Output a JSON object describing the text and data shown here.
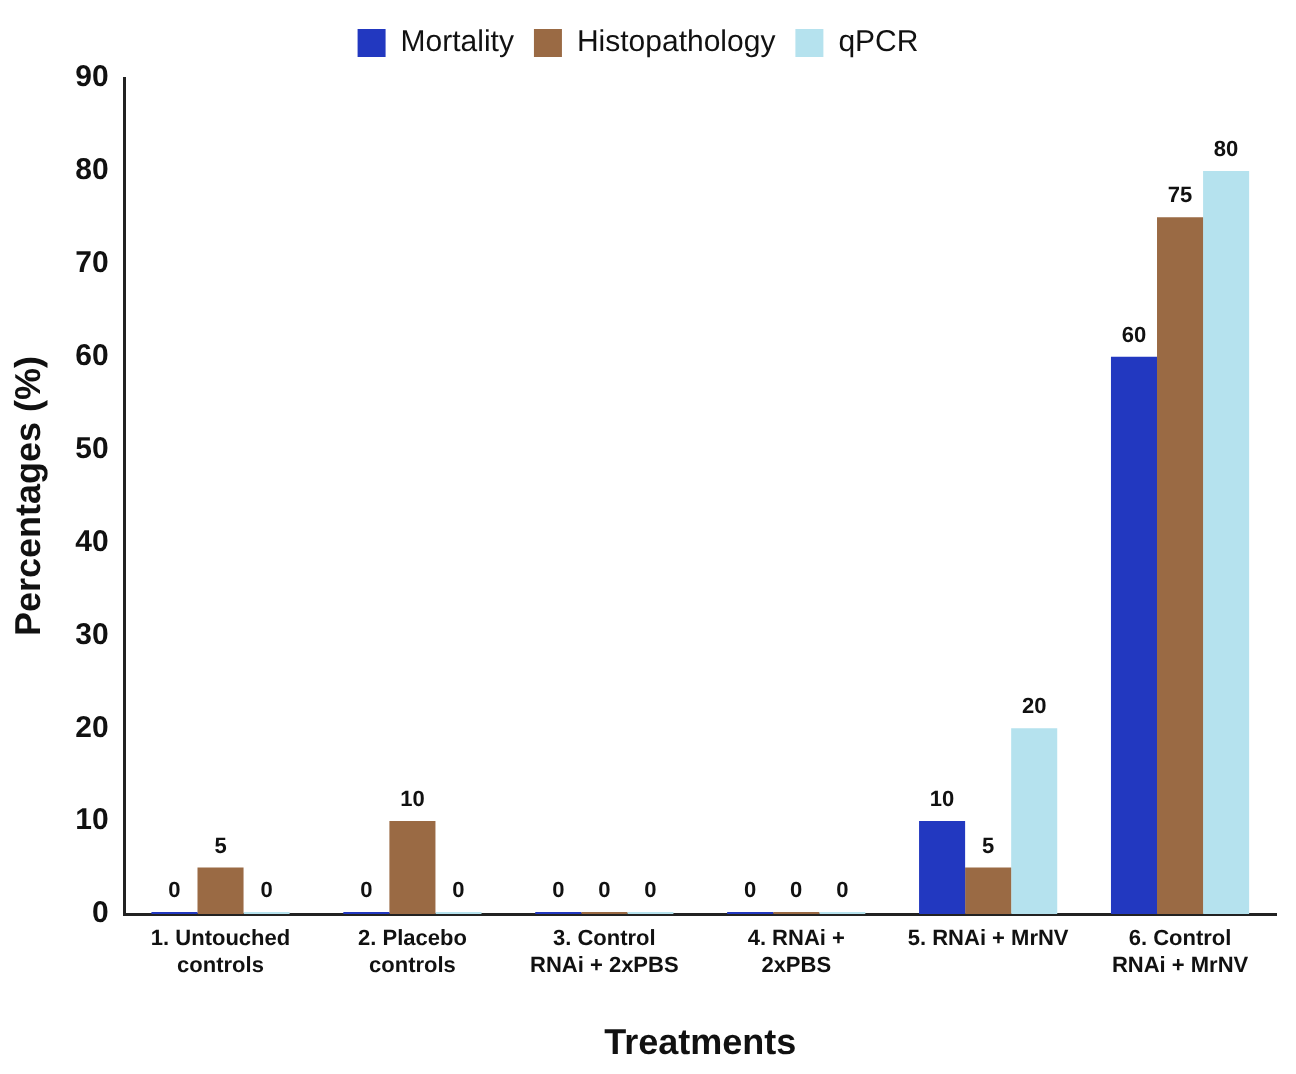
{
  "chart_data": {
    "type": "bar",
    "xlabel": "Treatments",
    "ylabel": "Percentages (%)",
    "categories": [
      "1. Untouched controls",
      "2. Placebo controls",
      "3. Control RNAi + 2xPBS",
      "4. RNAi + 2xPBS",
      "5. RNAi + MrNV",
      "6. Control RNAi + MrNV"
    ],
    "series": [
      {
        "name": "Mortality",
        "color": "#2238c0",
        "values": [
          0,
          0,
          0,
          0,
          10,
          60
        ]
      },
      {
        "name": "Histopathology",
        "color": "#9a6a44",
        "values": [
          5,
          10,
          0,
          0,
          5,
          75
        ]
      },
      {
        "name": "qPCR",
        "color": "#b5e2ee",
        "values": [
          0,
          0,
          0,
          0,
          20,
          80
        ]
      }
    ],
    "ylim": [
      0,
      90
    ],
    "yticks": [
      0,
      10,
      20,
      30,
      40,
      50,
      60,
      70,
      80,
      90
    ],
    "grid": false,
    "legend": "top",
    "data_labels": true
  }
}
